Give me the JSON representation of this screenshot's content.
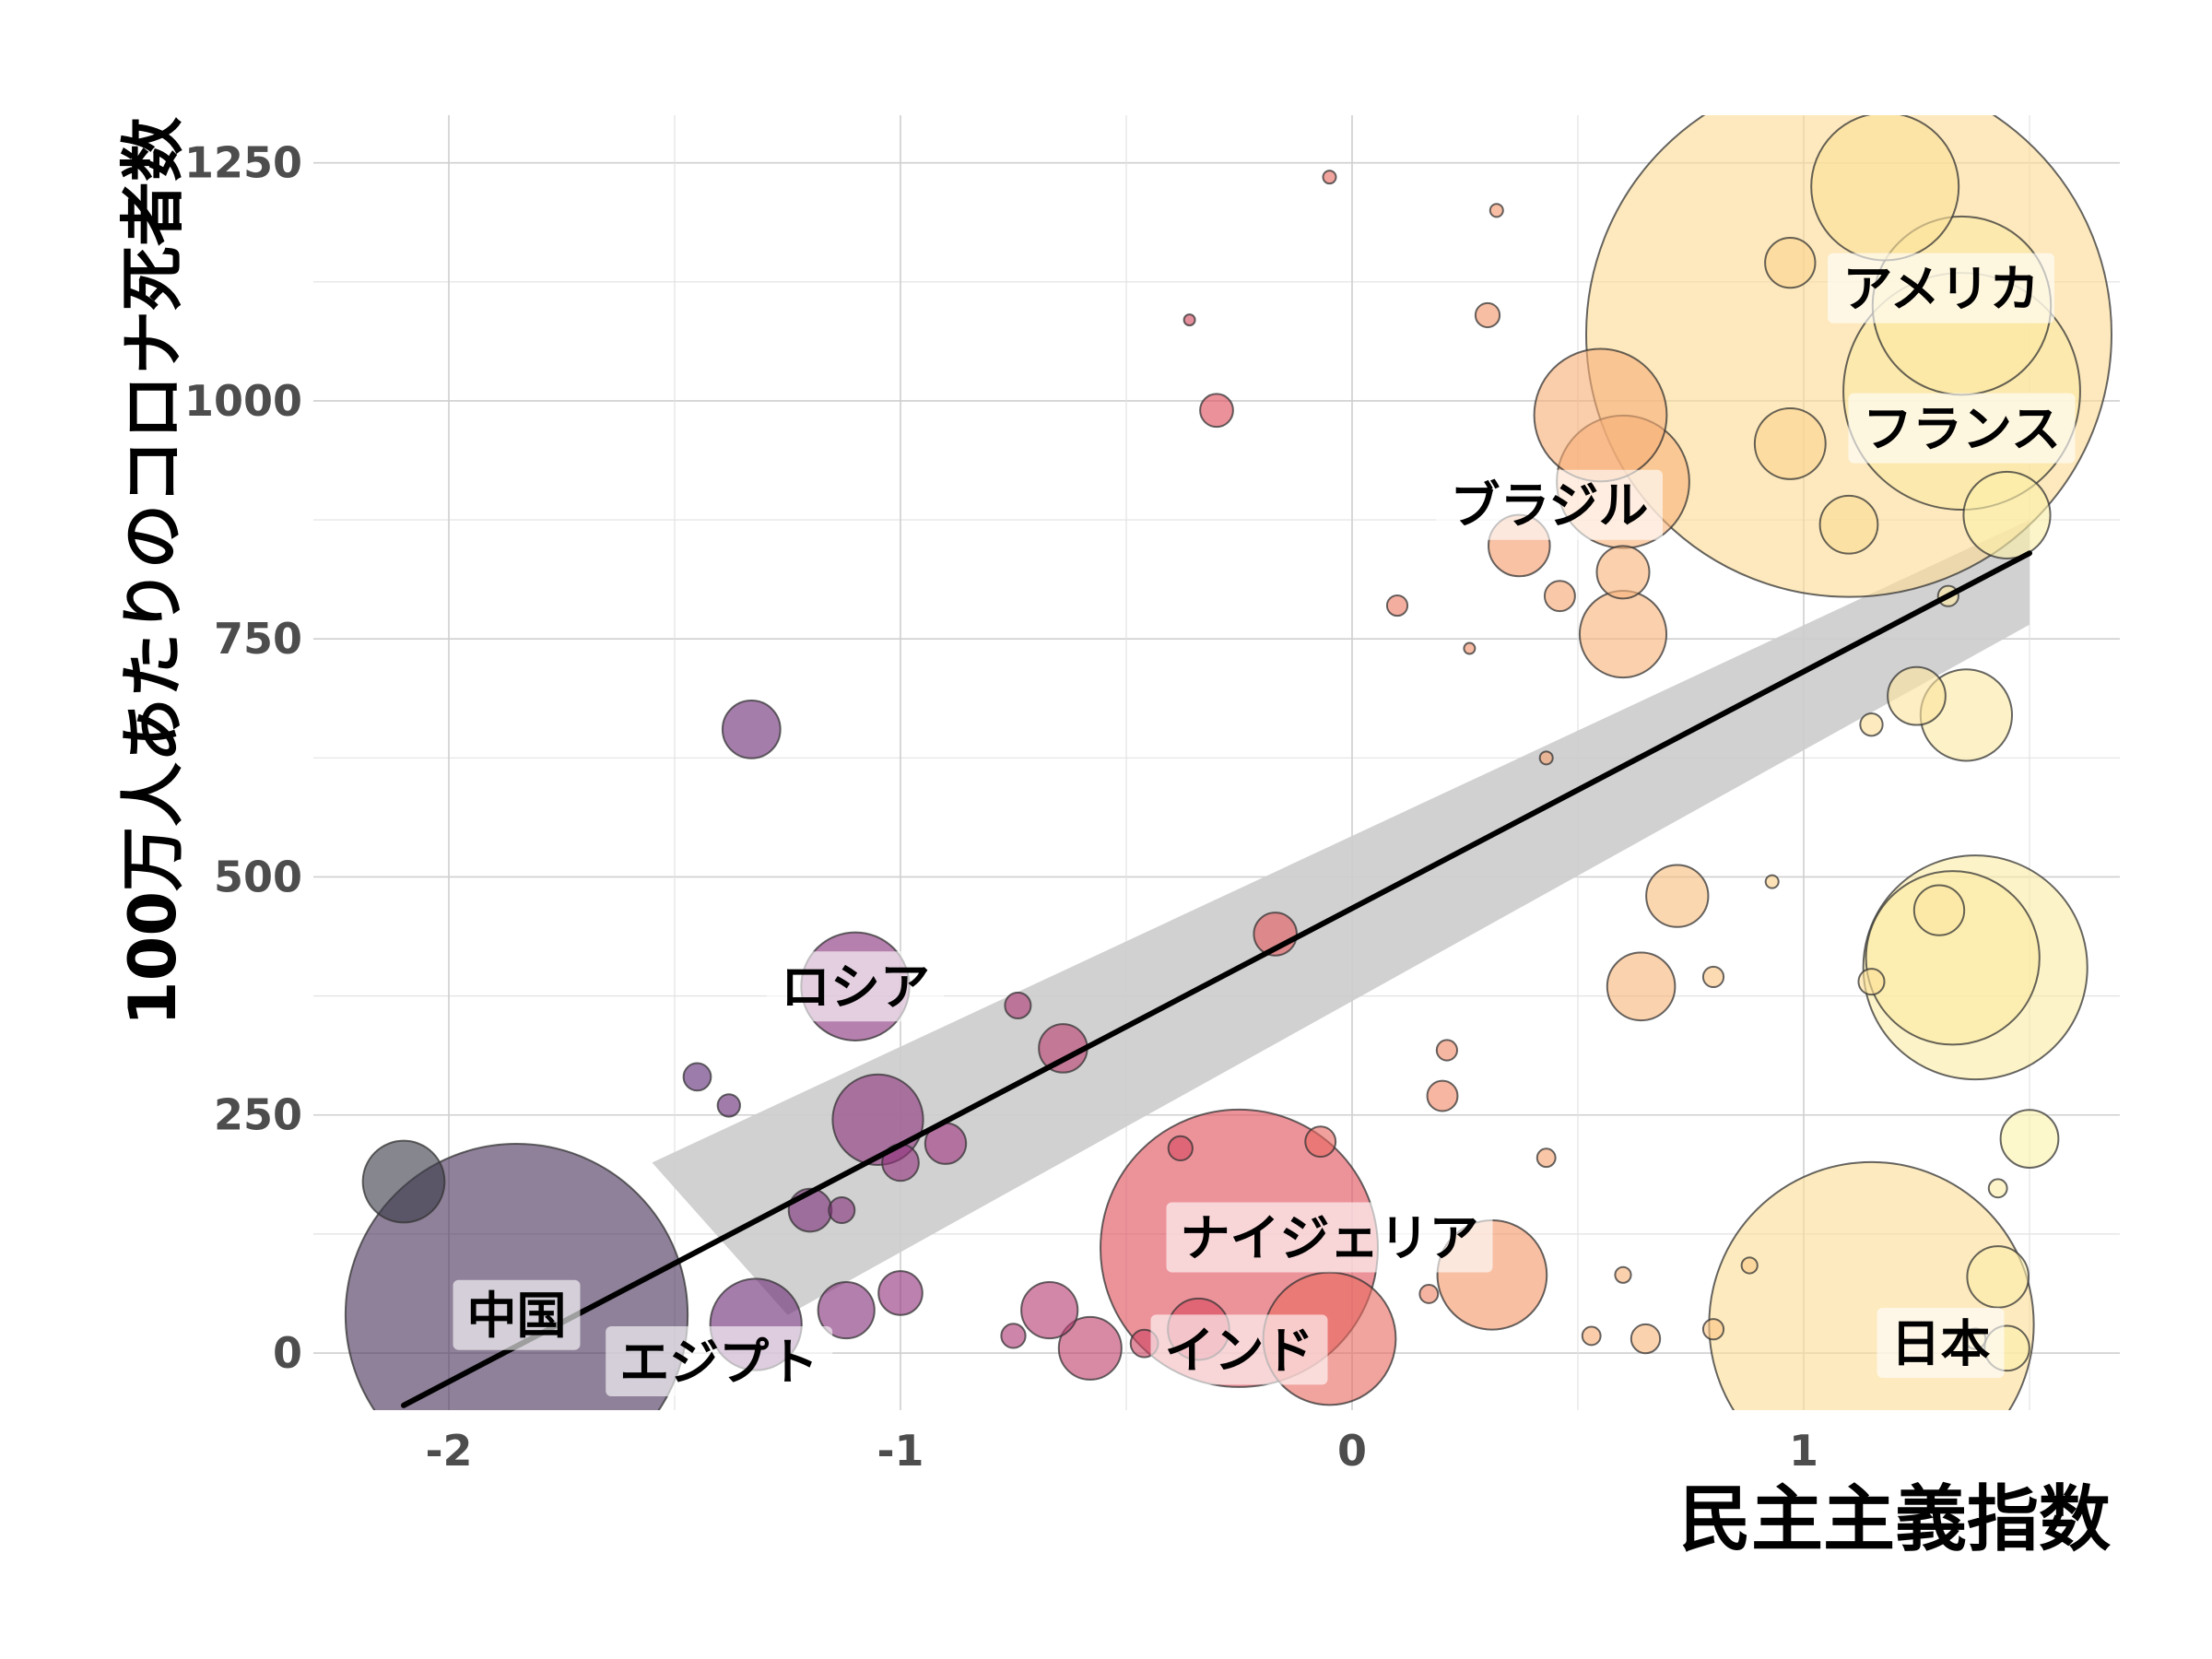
{
  "chart_data": {
    "type": "scatter",
    "title": "",
    "xlabel": "民主主義指数",
    "ylabel": "100万人あたりのコロナ死者数",
    "xlim": [
      -2.3,
      1.7
    ],
    "ylim": [
      -60,
      1300
    ],
    "x_ticks": [
      -2,
      -1,
      0,
      1
    ],
    "x_tick_labels": [
      "-2",
      "-1",
      "0",
      "1"
    ],
    "y_ticks": [
      0,
      250,
      500,
      750,
      1000,
      1250
    ],
    "y_tick_labels": [
      "0",
      "250",
      "500",
      "750",
      "1000",
      "1250"
    ],
    "grid": true,
    "legend": "none",
    "color_scale": [
      "#3b3b48",
      "#5a2a75",
      "#a0367e",
      "#e04e5b",
      "#f59a6c",
      "#fbd28c",
      "#fcf5b0"
    ],
    "trend_line": {
      "x_start": -2.1,
      "y_start": -55,
      "x_end": 1.5,
      "y_end": 840,
      "band_upper": [
        [
          -1.55,
          200
        ],
        [
          1.5,
          875
        ]
      ],
      "band_lower": [
        [
          -1.25,
          40
        ],
        [
          1.5,
          765
        ]
      ],
      "line_color": "#000000",
      "band_color": "#cccccc"
    },
    "points": [
      {
        "x": -1.85,
        "y": 40,
        "size": 1400,
        "label": "中国"
      },
      {
        "x": -1.32,
        "y": 30,
        "size": 100,
        "label": "エジプト"
      },
      {
        "x": -1.1,
        "y": 385,
        "size": 140,
        "label": "ロシア"
      },
      {
        "x": -0.25,
        "y": 110,
        "size": 920,
        "label": "インド"
      },
      {
        "x": -0.05,
        "y": 15,
        "size": 210,
        "label": "ナイジェリア"
      },
      {
        "x": 0.6,
        "y": 915,
        "size": 210,
        "label": "ブラジル"
      },
      {
        "x": 1.1,
        "y": 1070,
        "size": 3300,
        "label": "アメリカ"
      },
      {
        "x": 1.35,
        "y": 1010,
        "size": 670,
        "label": "フランス"
      },
      {
        "x": 1.15,
        "y": 30,
        "size": 1260,
        "label": "日本"
      },
      {
        "x": -2.1,
        "y": 180,
        "size": 80,
        "label": ""
      },
      {
        "x": -1.33,
        "y": 655,
        "size": 40,
        "label": ""
      },
      {
        "x": -0.3,
        "y": 990,
        "size": 13,
        "label": ""
      },
      {
        "x": -0.05,
        "y": 1235,
        "size": 2,
        "label": ""
      },
      {
        "x": -0.36,
        "y": 1085,
        "size": 1,
        "label": ""
      },
      {
        "x": 0.32,
        "y": 1200,
        "size": 2,
        "label": ""
      },
      {
        "x": 0.3,
        "y": 1090,
        "size": 7,
        "label": ""
      },
      {
        "x": 0.1,
        "y": 785,
        "size": 5,
        "label": ""
      },
      {
        "x": 0.55,
        "y": 985,
        "size": 210,
        "label": ""
      },
      {
        "x": 0.37,
        "y": 848,
        "size": 45,
        "label": ""
      },
      {
        "x": 0.6,
        "y": 820,
        "size": 33,
        "label": ""
      },
      {
        "x": 0.46,
        "y": 795,
        "size": 11,
        "label": ""
      },
      {
        "x": 0.6,
        "y": 755,
        "size": 90,
        "label": ""
      },
      {
        "x": 0.26,
        "y": 740,
        "size": 1,
        "label": ""
      },
      {
        "x": 0.43,
        "y": 625,
        "size": 2,
        "label": ""
      },
      {
        "x": 0.72,
        "y": 480,
        "size": 46,
        "label": ""
      },
      {
        "x": 0.93,
        "y": 495,
        "size": 2,
        "label": ""
      },
      {
        "x": 0.64,
        "y": 385,
        "size": 55,
        "label": ""
      },
      {
        "x": 0.8,
        "y": 395,
        "size": 5,
        "label": ""
      },
      {
        "x": 0.21,
        "y": 318,
        "size": 5,
        "label": ""
      },
      {
        "x": 0.2,
        "y": 270,
        "size": 11,
        "label": ""
      },
      {
        "x": 0.31,
        "y": 82,
        "size": 143,
        "label": ""
      },
      {
        "x": 0.17,
        "y": 62,
        "size": 4,
        "label": ""
      },
      {
        "x": 0.43,
        "y": 205,
        "size": 4,
        "label": ""
      },
      {
        "x": 0.53,
        "y": 18,
        "size": 4,
        "label": ""
      },
      {
        "x": 0.65,
        "y": 15,
        "size": 10,
        "label": ""
      },
      {
        "x": 0.6,
        "y": 82,
        "size": 3,
        "label": ""
      },
      {
        "x": 0.8,
        "y": 25,
        "size": 5,
        "label": ""
      },
      {
        "x": -0.07,
        "y": 222,
        "size": 11,
        "label": ""
      },
      {
        "x": -0.38,
        "y": 215,
        "size": 7,
        "label": ""
      },
      {
        "x": -0.17,
        "y": 440,
        "size": 22,
        "label": ""
      },
      {
        "x": -0.74,
        "y": 365,
        "size": 8,
        "label": ""
      },
      {
        "x": -0.64,
        "y": 320,
        "size": 28,
        "label": ""
      },
      {
        "x": -1.45,
        "y": 290,
        "size": 9,
        "label": ""
      },
      {
        "x": -1.38,
        "y": 260,
        "size": 6,
        "label": ""
      },
      {
        "x": -1.05,
        "y": 245,
        "size": 98,
        "label": ""
      },
      {
        "x": -0.9,
        "y": 220,
        "size": 20,
        "label": ""
      },
      {
        "x": -1.0,
        "y": 200,
        "size": 16,
        "label": ""
      },
      {
        "x": -1.2,
        "y": 150,
        "size": 22,
        "label": ""
      },
      {
        "x": -1.13,
        "y": 150,
        "size": 8,
        "label": ""
      },
      {
        "x": -1.0,
        "y": 63,
        "size": 23,
        "label": ""
      },
      {
        "x": -1.12,
        "y": 45,
        "size": 38,
        "label": ""
      },
      {
        "x": -0.67,
        "y": 45,
        "size": 38,
        "label": ""
      },
      {
        "x": -0.58,
        "y": 5,
        "size": 47,
        "label": ""
      },
      {
        "x": -0.34,
        "y": 25,
        "size": 45,
        "label": ""
      },
      {
        "x": -0.75,
        "y": 18,
        "size": 7,
        "label": ""
      },
      {
        "x": -0.46,
        "y": 10,
        "size": 9,
        "label": ""
      },
      {
        "x": 1.18,
        "y": 1225,
        "size": 260,
        "label": ""
      },
      {
        "x": 1.35,
        "y": 1100,
        "size": 380,
        "label": ""
      },
      {
        "x": 0.97,
        "y": 1145,
        "size": 30,
        "label": ""
      },
      {
        "x": 0.97,
        "y": 955,
        "size": 60,
        "label": ""
      },
      {
        "x": 1.1,
        "y": 870,
        "size": 40,
        "label": ""
      },
      {
        "x": 1.45,
        "y": 880,
        "size": 90,
        "label": ""
      },
      {
        "x": 1.32,
        "y": 795,
        "size": 5,
        "label": ""
      },
      {
        "x": 1.25,
        "y": 690,
        "size": 40,
        "label": ""
      },
      {
        "x": 1.36,
        "y": 670,
        "size": 100,
        "label": ""
      },
      {
        "x": 1.15,
        "y": 660,
        "size": 6,
        "label": ""
      },
      {
        "x": 1.33,
        "y": 415,
        "size": 360,
        "label": ""
      },
      {
        "x": 1.38,
        "y": 405,
        "size": 600,
        "label": ""
      },
      {
        "x": 1.3,
        "y": 465,
        "size": 30,
        "label": ""
      },
      {
        "x": 1.15,
        "y": 390,
        "size": 8,
        "label": ""
      },
      {
        "x": 1.5,
        "y": 225,
        "size": 40,
        "label": ""
      },
      {
        "x": 1.43,
        "y": 173,
        "size": 4,
        "label": ""
      },
      {
        "x": 1.43,
        "y": 80,
        "size": 45,
        "label": ""
      },
      {
        "x": 1.45,
        "y": 5,
        "size": 24,
        "label": ""
      },
      {
        "x": 1.38,
        "y": 15,
        "size": 5,
        "label": ""
      },
      {
        "x": 0.88,
        "y": 92,
        "size": 3,
        "label": ""
      }
    ]
  }
}
